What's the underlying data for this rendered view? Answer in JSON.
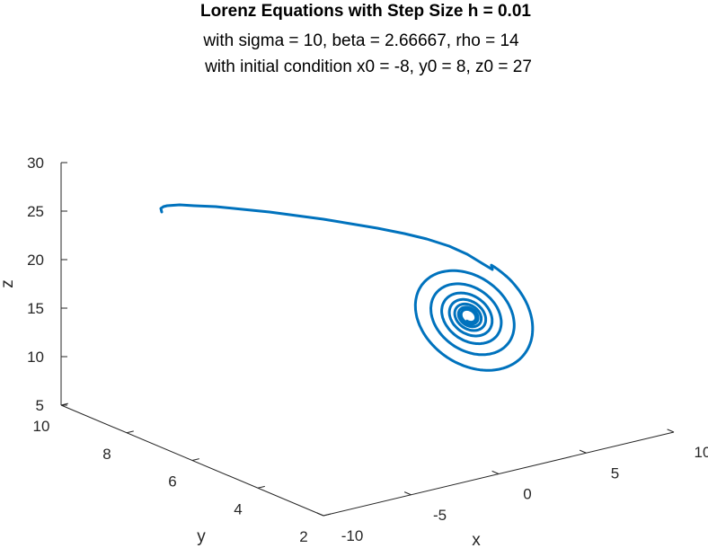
{
  "colors": {
    "series": "#0072BD",
    "axis": "#262626",
    "background": "#ffffff"
  },
  "chart_data": {
    "type": "line",
    "view": "3d",
    "title": "Lorenz Equations with Step Size h = 0.01",
    "subtitle_lines": [
      "with sigma = 10, beta = 2.66667, rho = 14",
      "with initial condition x0 = -8, y0 = 8, z0 = 27"
    ],
    "xlabel": "x",
    "ylabel": "y",
    "zlabel": "z",
    "xlim": [
      -10,
      10
    ],
    "ylim": [
      2,
      10
    ],
    "zlim": [
      5,
      30
    ],
    "xticks": [
      "-10",
      "-5",
      "0",
      "5",
      "10"
    ],
    "yticks": [
      "2",
      "4",
      "6",
      "8",
      "10"
    ],
    "zticks": [
      "5",
      "10",
      "15",
      "20",
      "25",
      "30"
    ],
    "grid": false,
    "legend": "none",
    "series": [
      {
        "start": {
          "x": -8,
          "y": 8,
          "z": 27
        },
        "end_approx": {
          "x": 5.1,
          "y": 5.1,
          "z": 13
        },
        "trajectory": "spiral decaying to a fixed point"
      }
    ]
  }
}
